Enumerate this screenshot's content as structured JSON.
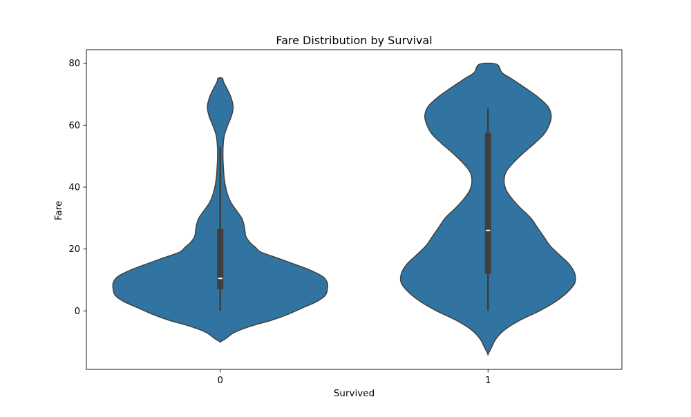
{
  "chart_data": {
    "type": "violin",
    "title": "Fare Distribution by Survival",
    "xlabel": "Survived",
    "ylabel": "Fare",
    "categories": [
      "0",
      "1"
    ],
    "ylim": [
      -18.9,
      84.4
    ],
    "yticks": [
      0,
      20,
      40,
      60,
      80
    ],
    "grid": false,
    "colors": {
      "violin_fill": "#3274a1",
      "violin_edge": "#3f3f3f",
      "box": "#3f3f3f",
      "median": "#ffffff"
    },
    "violins": [
      {
        "category": "0",
        "min": 0,
        "q1": 7.0,
        "median": 10.5,
        "q3": 26.5,
        "whisker_high": 53.0,
        "kde_min": -10.0,
        "kde_max": 75.2,
        "density": [
          [
            -10.0,
            0.0
          ],
          [
            -9.0,
            0.05
          ],
          [
            -7.0,
            0.13
          ],
          [
            -5.0,
            0.28
          ],
          [
            -3.0,
            0.48
          ],
          [
            -1.0,
            0.64
          ],
          [
            1.0,
            0.77
          ],
          [
            3.0,
            0.9
          ],
          [
            5.0,
            0.98
          ],
          [
            7.0,
            1.0
          ],
          [
            9.0,
            1.0
          ],
          [
            11.0,
            0.96
          ],
          [
            13.0,
            0.85
          ],
          [
            15.0,
            0.7
          ],
          [
            17.0,
            0.54
          ],
          [
            19.0,
            0.38
          ],
          [
            20.5,
            0.33
          ],
          [
            22.0,
            0.28
          ],
          [
            24.0,
            0.24
          ],
          [
            26.0,
            0.23
          ],
          [
            28.0,
            0.22
          ],
          [
            30.0,
            0.2
          ],
          [
            32.0,
            0.16
          ],
          [
            35.0,
            0.1
          ],
          [
            38.0,
            0.065
          ],
          [
            42.0,
            0.04
          ],
          [
            46.0,
            0.03
          ],
          [
            50.0,
            0.025
          ],
          [
            54.0,
            0.028
          ],
          [
            57.0,
            0.04
          ],
          [
            60.0,
            0.07
          ],
          [
            63.0,
            0.105
          ],
          [
            66.0,
            0.12
          ],
          [
            69.0,
            0.1
          ],
          [
            72.0,
            0.06
          ],
          [
            74.0,
            0.03
          ],
          [
            75.2,
            0.02
          ]
        ]
      },
      {
        "category": "1",
        "min": 0,
        "q1": 12.0,
        "median": 26.0,
        "q3": 57.5,
        "whisker_high": 65.5,
        "kde_min": -14.0,
        "kde_max": 79.7,
        "density": [
          [
            -14.0,
            0.0
          ],
          [
            -12.0,
            0.03
          ],
          [
            -9.0,
            0.075
          ],
          [
            -6.0,
            0.16
          ],
          [
            -3.0,
            0.3
          ],
          [
            0.0,
            0.48
          ],
          [
            3.0,
            0.63
          ],
          [
            6.0,
            0.74
          ],
          [
            9.0,
            0.81
          ],
          [
            12.0,
            0.81
          ],
          [
            15.0,
            0.76
          ],
          [
            18.0,
            0.67
          ],
          [
            21.0,
            0.58
          ],
          [
            24.0,
            0.52
          ],
          [
            27.0,
            0.46
          ],
          [
            30.0,
            0.4
          ],
          [
            33.0,
            0.31
          ],
          [
            36.0,
            0.23
          ],
          [
            39.0,
            0.17
          ],
          [
            42.0,
            0.15
          ],
          [
            45.0,
            0.17
          ],
          [
            48.0,
            0.24
          ],
          [
            51.0,
            0.33
          ],
          [
            54.0,
            0.43
          ],
          [
            57.0,
            0.52
          ],
          [
            60.0,
            0.57
          ],
          [
            63.0,
            0.59
          ],
          [
            66.0,
            0.56
          ],
          [
            69.0,
            0.47
          ],
          [
            72.0,
            0.35
          ],
          [
            75.0,
            0.22
          ],
          [
            77.0,
            0.13
          ],
          [
            79.7,
            0.08
          ]
        ]
      }
    ]
  }
}
